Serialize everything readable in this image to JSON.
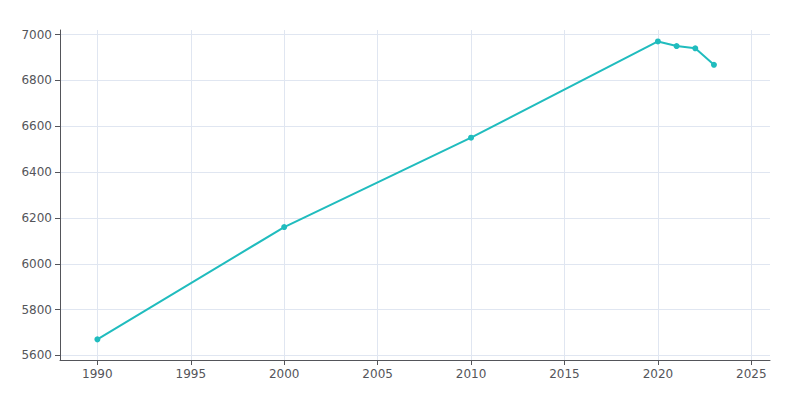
{
  "chart_data": {
    "type": "line",
    "x": [
      1990,
      2000,
      2010,
      2020,
      2021,
      2022,
      2023
    ],
    "values": [
      5670,
      6160,
      6550,
      6970,
      6950,
      6940,
      6868
    ],
    "color": "#20BCBE",
    "marker": "circle",
    "xlim": [
      1988,
      2026
    ],
    "xticks": [
      1990,
      1995,
      2000,
      2005,
      2010,
      2015,
      2020,
      2025
    ],
    "ylim": [
      5580,
      7020
    ],
    "yticks": [
      5600,
      5800,
      6000,
      6200,
      6400,
      6600,
      6800,
      7000
    ],
    "grid": true
  }
}
